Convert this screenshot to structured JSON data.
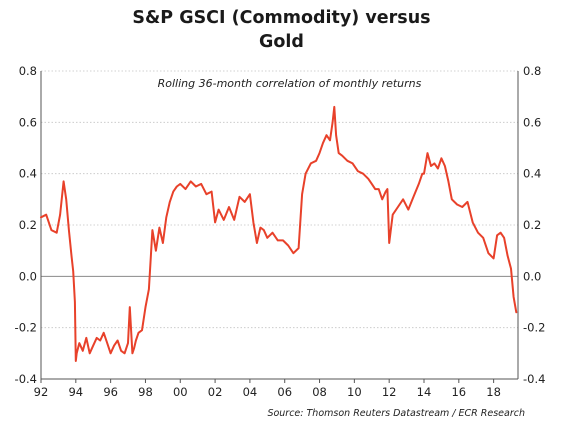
{
  "title_line1": "S&P GSCI (Commodity) versus",
  "title_line2": "Gold",
  "chart_data": {
    "type": "line",
    "title": "S&P GSCI (Commodity) versus Gold",
    "subtitle": "Rolling 36-month correlation of monthly returns",
    "source": "Source: Thomson Reuters Datastream / ECR Research",
    "xlabel": "",
    "ylabel": "",
    "xlim": [
      1992,
      2019.4
    ],
    "ylim": [
      -0.4,
      0.8
    ],
    "x_ticks": [
      1992,
      1994,
      1996,
      1998,
      2000,
      2002,
      2004,
      2006,
      2008,
      2010,
      2012,
      2014,
      2016,
      2018
    ],
    "x_tick_labels": [
      "92",
      "94",
      "96",
      "98",
      "00",
      "02",
      "04",
      "06",
      "08",
      "10",
      "12",
      "14",
      "16",
      "18"
    ],
    "y_ticks": [
      -0.4,
      -0.2,
      0.0,
      0.2,
      0.4,
      0.6,
      0.8
    ],
    "y_tick_labels": [
      "-0.4",
      "-0.2",
      "0.0",
      "0.2",
      "0.4",
      "0.6",
      "0.8"
    ],
    "grid": true,
    "zero_line": true,
    "dual_y_axis": true,
    "series_color": "#e8412a",
    "series": [
      {
        "name": "",
        "x": [
          1992.0,
          1992.3,
          1992.6,
          1992.9,
          1993.1,
          1993.3,
          1993.45,
          1993.6,
          1993.75,
          1993.85,
          1993.95,
          1994.0,
          1994.05,
          1994.2,
          1994.4,
          1994.6,
          1994.8,
          1995.0,
          1995.2,
          1995.4,
          1995.6,
          1995.8,
          1996.0,
          1996.2,
          1996.4,
          1996.6,
          1996.8,
          1997.0,
          1997.1,
          1997.25,
          1997.35,
          1997.45,
          1997.6,
          1997.8,
          1998.0,
          1998.2,
          1998.4,
          1998.6,
          1998.8,
          1999.0,
          1999.2,
          1999.4,
          1999.6,
          1999.8,
          2000.0,
          2000.3,
          2000.6,
          2000.9,
          2001.2,
          2001.5,
          2001.8,
          2002.0,
          2002.2,
          2002.5,
          2002.8,
          2003.1,
          2003.4,
          2003.7,
          2004.0,
          2004.2,
          2004.4,
          2004.6,
          2004.8,
          2005.0,
          2005.3,
          2005.6,
          2005.9,
          2006.2,
          2006.5,
          2006.8,
          2007.0,
          2007.2,
          2007.5,
          2007.8,
          2008.0,
          2008.2,
          2008.4,
          2008.6,
          2008.75,
          2008.85,
          2008.95,
          2009.1,
          2009.3,
          2009.6,
          2009.9,
          2010.2,
          2010.5,
          2010.8,
          2011.0,
          2011.2,
          2011.4,
          2011.6,
          2011.8,
          2011.9,
          2012.0,
          2012.2,
          2012.5,
          2012.8,
          2013.1,
          2013.4,
          2013.7,
          2013.9,
          2014.0,
          2014.2,
          2014.4,
          2014.6,
          2014.8,
          2015.0,
          2015.2,
          2015.4,
          2015.6,
          2015.9,
          2016.2,
          2016.5,
          2016.8,
          2017.1,
          2017.4,
          2017.7,
          2018.0,
          2018.2,
          2018.4,
          2018.6,
          2018.8,
          2019.0,
          2019.15,
          2019.3
        ],
        "y": [
          0.23,
          0.24,
          0.18,
          0.17,
          0.24,
          0.37,
          0.3,
          0.18,
          0.08,
          0.02,
          -0.1,
          -0.33,
          -0.3,
          -0.26,
          -0.29,
          -0.24,
          -0.3,
          -0.27,
          -0.24,
          -0.25,
          -0.22,
          -0.26,
          -0.3,
          -0.27,
          -0.25,
          -0.29,
          -0.3,
          -0.26,
          -0.12,
          -0.3,
          -0.28,
          -0.25,
          -0.22,
          -0.21,
          -0.12,
          -0.05,
          0.18,
          0.1,
          0.19,
          0.13,
          0.23,
          0.29,
          0.33,
          0.35,
          0.36,
          0.34,
          0.37,
          0.35,
          0.36,
          0.32,
          0.33,
          0.21,
          0.26,
          0.22,
          0.27,
          0.22,
          0.31,
          0.29,
          0.32,
          0.21,
          0.13,
          0.19,
          0.18,
          0.15,
          0.17,
          0.14,
          0.14,
          0.12,
          0.09,
          0.11,
          0.32,
          0.4,
          0.44,
          0.45,
          0.48,
          0.52,
          0.55,
          0.53,
          0.6,
          0.66,
          0.55,
          0.48,
          0.47,
          0.45,
          0.44,
          0.41,
          0.4,
          0.38,
          0.36,
          0.34,
          0.34,
          0.3,
          0.33,
          0.34,
          0.13,
          0.24,
          0.27,
          0.3,
          0.26,
          0.31,
          0.36,
          0.4,
          0.4,
          0.48,
          0.43,
          0.44,
          0.42,
          0.46,
          0.43,
          0.37,
          0.3,
          0.28,
          0.27,
          0.29,
          0.21,
          0.17,
          0.15,
          0.09,
          0.07,
          0.16,
          0.17,
          0.15,
          0.08,
          0.03,
          -0.08,
          -0.14
        ]
      }
    ]
  }
}
